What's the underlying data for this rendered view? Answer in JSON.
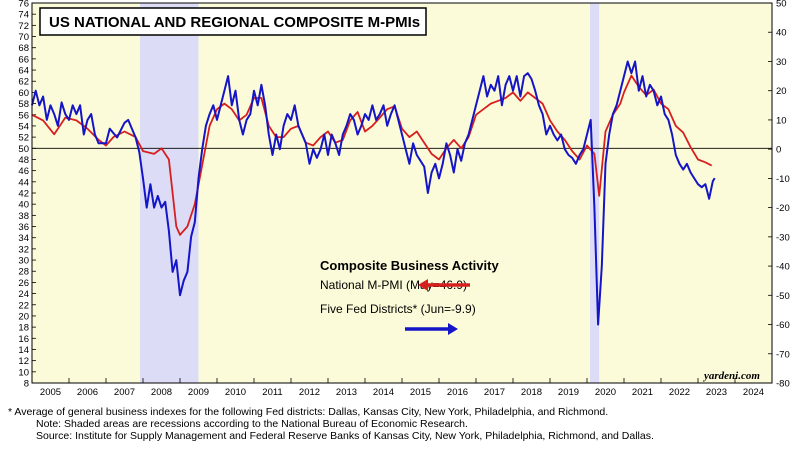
{
  "chart_data": {
    "type": "line",
    "title": "US NATIONAL AND REGIONAL COMPOSITE M-PMIs",
    "watermark": "yardeni.com",
    "x_labels": [
      "2005",
      "2006",
      "2007",
      "2008",
      "2009",
      "2010",
      "2011",
      "2012",
      "2013",
      "2014",
      "2015",
      "2016",
      "2017",
      "2018",
      "2019",
      "2020",
      "2021",
      "2022",
      "2023",
      "2024"
    ],
    "xlim": [
      2005.0,
      2025.0
    ],
    "left_axis": {
      "ylim": [
        8,
        76
      ],
      "ticks": [
        8,
        10,
        12,
        14,
        16,
        18,
        20,
        22,
        24,
        26,
        28,
        30,
        32,
        34,
        36,
        38,
        40,
        42,
        44,
        46,
        48,
        50,
        52,
        54,
        56,
        58,
        60,
        62,
        64,
        66,
        68,
        70,
        72,
        74,
        76
      ]
    },
    "right_axis": {
      "ylim": [
        -80,
        50
      ],
      "ticks": [
        -80,
        -70,
        -60,
        -50,
        -40,
        -30,
        -20,
        -10,
        0,
        10,
        20,
        30,
        40,
        50
      ]
    },
    "reference_line": {
      "axis": "left",
      "value": 50
    },
    "recessions": [
      {
        "start": 2007.92,
        "end": 2009.5
      },
      {
        "start": 2020.08,
        "end": 2020.33
      }
    ],
    "legend": {
      "title": "Composite Business Activity",
      "entries": [
        "National M-PMI (May=46.9)",
        "Five Fed Districts* (Jun=-9.9)"
      ]
    },
    "series": [
      {
        "name": "National M-PMI (May=46.9)",
        "axis": "left",
        "color": "#d62020",
        "points": [
          [
            2005.0,
            56
          ],
          [
            2005.3,
            55
          ],
          [
            2005.6,
            52.5
          ],
          [
            2005.9,
            55.5
          ],
          [
            2006.2,
            55
          ],
          [
            2006.5,
            53.5
          ],
          [
            2006.8,
            51.5
          ],
          [
            2007.0,
            50.5
          ],
          [
            2007.2,
            52
          ],
          [
            2007.5,
            53
          ],
          [
            2007.8,
            52
          ],
          [
            2008.0,
            49.5
          ],
          [
            2008.3,
            49
          ],
          [
            2008.5,
            50
          ],
          [
            2008.7,
            48
          ],
          [
            2008.9,
            36
          ],
          [
            2009.0,
            34.5
          ],
          [
            2009.2,
            36
          ],
          [
            2009.4,
            40
          ],
          [
            2009.6,
            47
          ],
          [
            2009.8,
            54
          ],
          [
            2010.0,
            57
          ],
          [
            2010.2,
            58
          ],
          [
            2010.4,
            57
          ],
          [
            2010.6,
            55
          ],
          [
            2010.8,
            56
          ],
          [
            2011.0,
            59
          ],
          [
            2011.2,
            59
          ],
          [
            2011.4,
            54
          ],
          [
            2011.6,
            52
          ],
          [
            2011.8,
            52
          ],
          [
            2012.0,
            53.5
          ],
          [
            2012.2,
            54
          ],
          [
            2012.4,
            51
          ],
          [
            2012.6,
            50.5
          ],
          [
            2012.8,
            52
          ],
          [
            2013.0,
            53
          ],
          [
            2013.2,
            51
          ],
          [
            2013.4,
            51.5
          ],
          [
            2013.6,
            55
          ],
          [
            2013.8,
            56.5
          ],
          [
            2014.0,
            53
          ],
          [
            2014.2,
            54
          ],
          [
            2014.4,
            55.5
          ],
          [
            2014.6,
            57
          ],
          [
            2014.8,
            57.5
          ],
          [
            2015.0,
            53.5
          ],
          [
            2015.2,
            52
          ],
          [
            2015.4,
            53
          ],
          [
            2015.6,
            51
          ],
          [
            2015.8,
            49
          ],
          [
            2016.0,
            48
          ],
          [
            2016.2,
            50
          ],
          [
            2016.4,
            51.5
          ],
          [
            2016.6,
            50
          ],
          [
            2016.8,
            52
          ],
          [
            2017.0,
            56
          ],
          [
            2017.2,
            57
          ],
          [
            2017.4,
            58
          ],
          [
            2017.6,
            58.5
          ],
          [
            2017.8,
            59
          ],
          [
            2018.0,
            60
          ],
          [
            2018.2,
            58.5
          ],
          [
            2018.4,
            60
          ],
          [
            2018.6,
            59
          ],
          [
            2018.8,
            58
          ],
          [
            2019.0,
            55
          ],
          [
            2019.2,
            53
          ],
          [
            2019.4,
            51.5
          ],
          [
            2019.6,
            49.5
          ],
          [
            2019.8,
            48
          ],
          [
            2020.0,
            50.5
          ],
          [
            2020.2,
            49
          ],
          [
            2020.33,
            41.5
          ],
          [
            2020.5,
            53
          ],
          [
            2020.7,
            56
          ],
          [
            2020.9,
            58
          ],
          [
            2021.0,
            60
          ],
          [
            2021.2,
            63
          ],
          [
            2021.4,
            61
          ],
          [
            2021.6,
            59.5
          ],
          [
            2021.8,
            60.5
          ],
          [
            2022.0,
            58
          ],
          [
            2022.2,
            57
          ],
          [
            2022.4,
            54
          ],
          [
            2022.6,
            52.8
          ],
          [
            2022.8,
            50.2
          ],
          [
            2023.0,
            48
          ],
          [
            2023.2,
            47.5
          ],
          [
            2023.37,
            46.9
          ]
        ]
      },
      {
        "name": "Five Fed Districts* (Jun=-9.9)",
        "axis": "right",
        "color": "#1515c8",
        "points": [
          [
            2005.0,
            15
          ],
          [
            2005.1,
            20
          ],
          [
            2005.2,
            15
          ],
          [
            2005.3,
            18
          ],
          [
            2005.4,
            10
          ],
          [
            2005.5,
            15
          ],
          [
            2005.6,
            12
          ],
          [
            2005.7,
            8
          ],
          [
            2005.8,
            16
          ],
          [
            2005.9,
            12
          ],
          [
            2006.0,
            10
          ],
          [
            2006.1,
            15
          ],
          [
            2006.2,
            12
          ],
          [
            2006.3,
            15
          ],
          [
            2006.4,
            5
          ],
          [
            2006.5,
            10
          ],
          [
            2006.6,
            12
          ],
          [
            2006.7,
            5
          ],
          [
            2006.8,
            2
          ],
          [
            2007.0,
            2
          ],
          [
            2007.1,
            7
          ],
          [
            2007.3,
            4
          ],
          [
            2007.5,
            9
          ],
          [
            2007.6,
            10
          ],
          [
            2007.8,
            4
          ],
          [
            2007.9,
            -1
          ],
          [
            2008.0,
            -10
          ],
          [
            2008.1,
            -20
          ],
          [
            2008.2,
            -12
          ],
          [
            2008.3,
            -20
          ],
          [
            2008.4,
            -16
          ],
          [
            2008.5,
            -20
          ],
          [
            2008.6,
            -18
          ],
          [
            2008.7,
            -28
          ],
          [
            2008.8,
            -42
          ],
          [
            2008.9,
            -38
          ],
          [
            2009.0,
            -50
          ],
          [
            2009.1,
            -45
          ],
          [
            2009.2,
            -42
          ],
          [
            2009.3,
            -30
          ],
          [
            2009.4,
            -25
          ],
          [
            2009.5,
            -10
          ],
          [
            2009.6,
            0
          ],
          [
            2009.7,
            8
          ],
          [
            2009.8,
            12
          ],
          [
            2009.9,
            15
          ],
          [
            2010.0,
            10
          ],
          [
            2010.1,
            15
          ],
          [
            2010.2,
            20
          ],
          [
            2010.3,
            25
          ],
          [
            2010.4,
            15
          ],
          [
            2010.5,
            20
          ],
          [
            2010.6,
            10
          ],
          [
            2010.7,
            5
          ],
          [
            2010.8,
            10
          ],
          [
            2010.9,
            12
          ],
          [
            2011.0,
            20
          ],
          [
            2011.1,
            15
          ],
          [
            2011.2,
            22
          ],
          [
            2011.3,
            15
          ],
          [
            2011.4,
            5
          ],
          [
            2011.5,
            -2
          ],
          [
            2011.6,
            5
          ],
          [
            2011.7,
            0
          ],
          [
            2011.8,
            8
          ],
          [
            2011.9,
            12
          ],
          [
            2012.0,
            10
          ],
          [
            2012.1,
            15
          ],
          [
            2012.2,
            8
          ],
          [
            2012.3,
            5
          ],
          [
            2012.4,
            2
          ],
          [
            2012.5,
            -5
          ],
          [
            2012.6,
            0
          ],
          [
            2012.7,
            -3
          ],
          [
            2012.8,
            0
          ],
          [
            2012.9,
            5
          ],
          [
            2013.0,
            -2
          ],
          [
            2013.1,
            5
          ],
          [
            2013.2,
            2
          ],
          [
            2013.3,
            -2
          ],
          [
            2013.4,
            5
          ],
          [
            2013.5,
            8
          ],
          [
            2013.6,
            12
          ],
          [
            2013.7,
            10
          ],
          [
            2013.8,
            5
          ],
          [
            2013.9,
            8
          ],
          [
            2014.0,
            12
          ],
          [
            2014.1,
            10
          ],
          [
            2014.2,
            15
          ],
          [
            2014.3,
            10
          ],
          [
            2014.4,
            12
          ],
          [
            2014.5,
            15
          ],
          [
            2014.6,
            8
          ],
          [
            2014.7,
            12
          ],
          [
            2014.8,
            15
          ],
          [
            2014.9,
            10
          ],
          [
            2015.0,
            5
          ],
          [
            2015.1,
            0
          ],
          [
            2015.2,
            -5
          ],
          [
            2015.3,
            2
          ],
          [
            2015.4,
            -2
          ],
          [
            2015.5,
            -4
          ],
          [
            2015.6,
            -6
          ],
          [
            2015.7,
            -15
          ],
          [
            2015.8,
            -8
          ],
          [
            2015.9,
            -5
          ],
          [
            2016.0,
            -10
          ],
          [
            2016.1,
            -5
          ],
          [
            2016.2,
            2
          ],
          [
            2016.3,
            -2
          ],
          [
            2016.4,
            -8
          ],
          [
            2016.5,
            0
          ],
          [
            2016.6,
            -4
          ],
          [
            2016.7,
            2
          ],
          [
            2016.8,
            5
          ],
          [
            2016.9,
            10
          ],
          [
            2017.0,
            15
          ],
          [
            2017.1,
            20
          ],
          [
            2017.2,
            25
          ],
          [
            2017.3,
            18
          ],
          [
            2017.4,
            22
          ],
          [
            2017.5,
            20
          ],
          [
            2017.6,
            25
          ],
          [
            2017.7,
            15
          ],
          [
            2017.8,
            22
          ],
          [
            2017.9,
            25
          ],
          [
            2018.0,
            20
          ],
          [
            2018.1,
            25
          ],
          [
            2018.2,
            18
          ],
          [
            2018.3,
            25
          ],
          [
            2018.4,
            26
          ],
          [
            2018.5,
            24
          ],
          [
            2018.6,
            20
          ],
          [
            2018.7,
            15
          ],
          [
            2018.8,
            12
          ],
          [
            2018.9,
            5
          ],
          [
            2019.0,
            8
          ],
          [
            2019.1,
            5
          ],
          [
            2019.2,
            3
          ],
          [
            2019.3,
            5
          ],
          [
            2019.4,
            0
          ],
          [
            2019.5,
            -2
          ],
          [
            2019.6,
            -3
          ],
          [
            2019.7,
            -5
          ],
          [
            2019.8,
            -2
          ],
          [
            2019.9,
            0
          ],
          [
            2020.0,
            5
          ],
          [
            2020.1,
            10
          ],
          [
            2020.2,
            -20
          ],
          [
            2020.3,
            -60
          ],
          [
            2020.4,
            -40
          ],
          [
            2020.5,
            -5
          ],
          [
            2020.6,
            5
          ],
          [
            2020.7,
            12
          ],
          [
            2020.8,
            15
          ],
          [
            2020.9,
            20
          ],
          [
            2021.0,
            25
          ],
          [
            2021.1,
            30
          ],
          [
            2021.2,
            26
          ],
          [
            2021.3,
            30
          ],
          [
            2021.4,
            20
          ],
          [
            2021.5,
            25
          ],
          [
            2021.6,
            18
          ],
          [
            2021.7,
            22
          ],
          [
            2021.8,
            20
          ],
          [
            2021.9,
            15
          ],
          [
            2022.0,
            18
          ],
          [
            2022.1,
            12
          ],
          [
            2022.2,
            10
          ],
          [
            2022.3,
            5
          ],
          [
            2022.4,
            -2
          ],
          [
            2022.5,
            -5
          ],
          [
            2022.6,
            -7
          ],
          [
            2022.7,
            -5
          ],
          [
            2022.8,
            -8
          ],
          [
            2022.9,
            -10
          ],
          [
            2023.0,
            -12
          ],
          [
            2023.1,
            -13
          ],
          [
            2023.2,
            -12
          ],
          [
            2023.3,
            -17
          ],
          [
            2023.4,
            -11
          ],
          [
            2023.45,
            -9.9
          ]
        ]
      }
    ]
  },
  "footnotes": [
    "*   Average of general business indexes for the following Fed districts: Dallas, Kansas City, New York, Philadelphia, and Richmond.",
    "Note: Shaded areas are recessions according to the National Bureau of Economic Research.",
    "Source: Institute for Supply Management and Federal Reserve Banks of Kansas City, New York, Philadelphia, Richmond, and Dallas."
  ]
}
